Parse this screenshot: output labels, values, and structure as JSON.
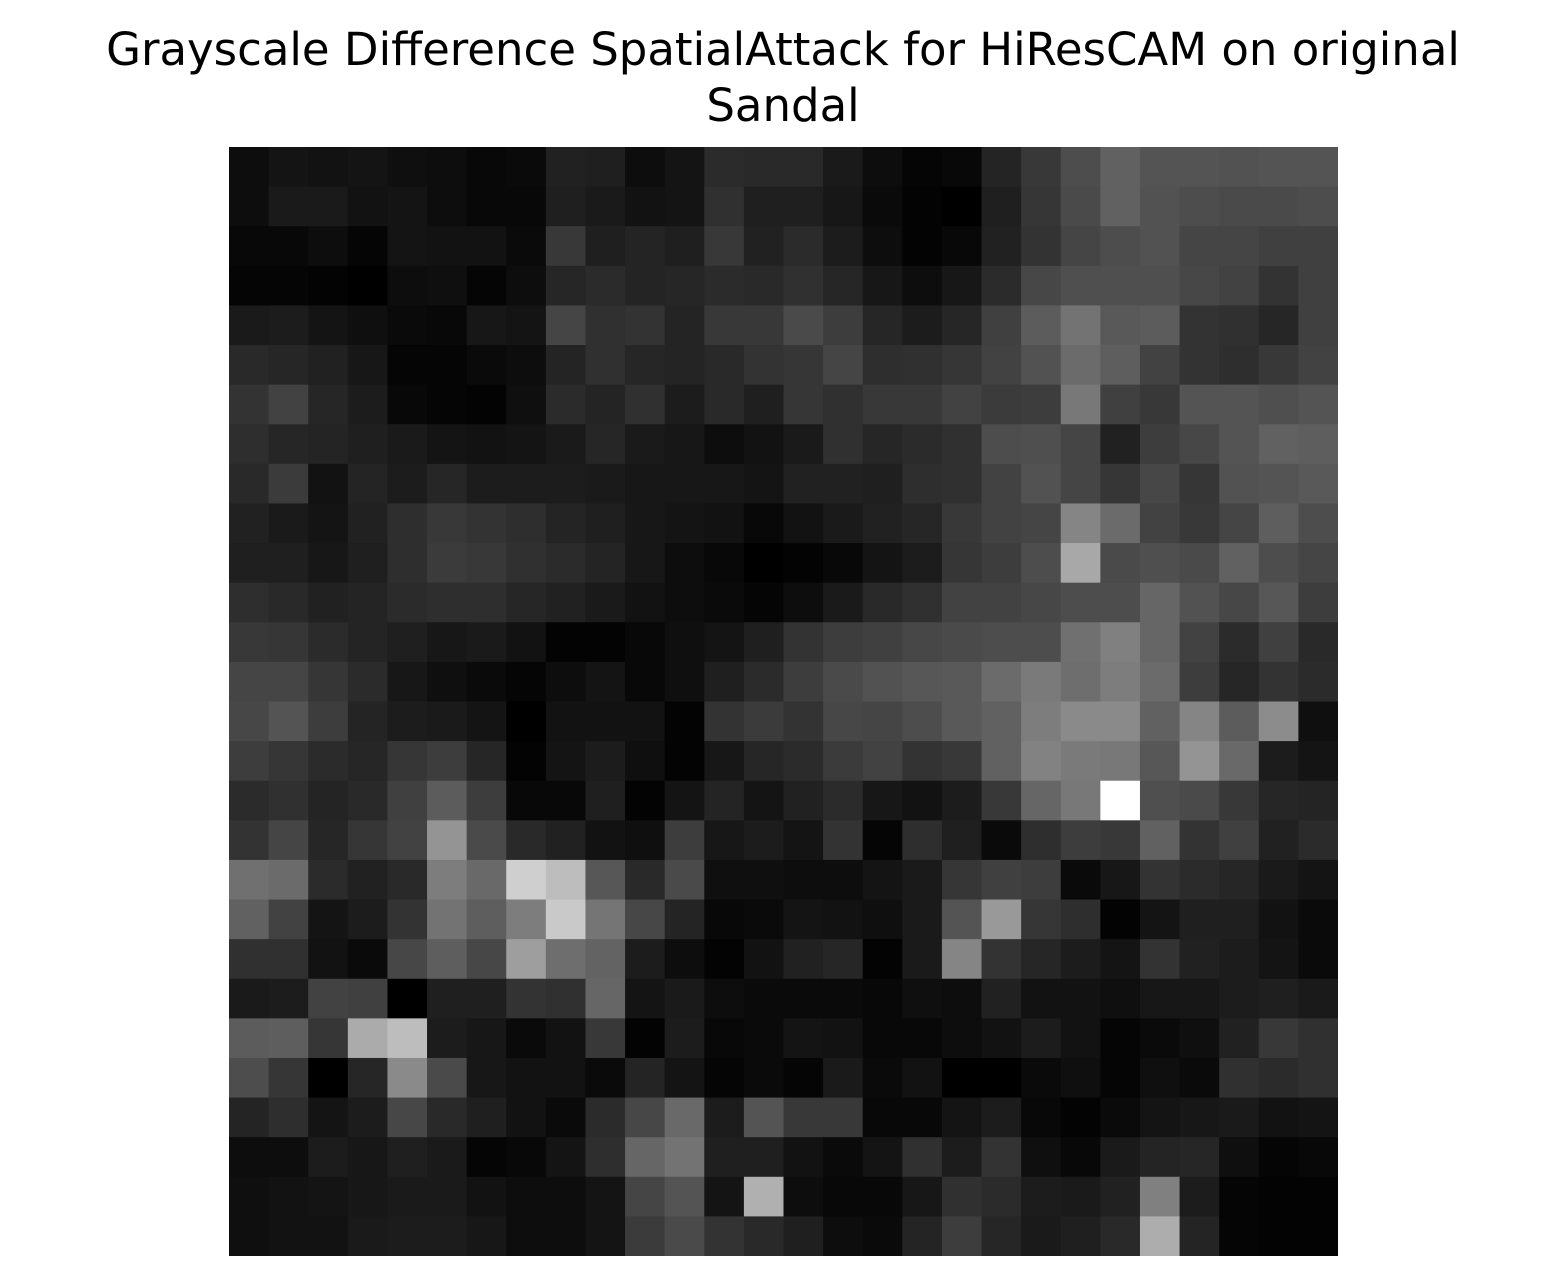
{
  "chart_data": {
    "type": "heatmap",
    "title_line1": "Grayscale Difference SpatialAttack for HiResCAM on original",
    "title_line2": "Sandal",
    "colormap": "gray",
    "axes": "off",
    "rows": 28,
    "cols": 28,
    "values": [
      [
        0.05,
        0.08,
        0.07,
        0.08,
        0.06,
        0.05,
        0.03,
        0.04,
        0.13,
        0.12,
        0.05,
        0.08,
        0.17,
        0.16,
        0.16,
        0.1,
        0.05,
        0.02,
        0.03,
        0.14,
        0.22,
        0.3,
        0.38,
        0.33,
        0.33,
        0.32,
        0.33,
        0.33
      ],
      [
        0.05,
        0.1,
        0.1,
        0.07,
        0.08,
        0.05,
        0.03,
        0.03,
        0.12,
        0.1,
        0.07,
        0.08,
        0.19,
        0.12,
        0.12,
        0.09,
        0.04,
        0.01,
        0.0,
        0.12,
        0.21,
        0.29,
        0.38,
        0.32,
        0.3,
        0.29,
        0.29,
        0.3
      ],
      [
        0.03,
        0.03,
        0.05,
        0.02,
        0.08,
        0.07,
        0.07,
        0.04,
        0.22,
        0.12,
        0.14,
        0.12,
        0.22,
        0.13,
        0.17,
        0.11,
        0.05,
        0.01,
        0.03,
        0.13,
        0.2,
        0.27,
        0.3,
        0.32,
        0.27,
        0.27,
        0.25,
        0.25
      ],
      [
        0.02,
        0.02,
        0.01,
        0.0,
        0.05,
        0.06,
        0.02,
        0.05,
        0.15,
        0.17,
        0.14,
        0.15,
        0.17,
        0.16,
        0.19,
        0.15,
        0.09,
        0.05,
        0.09,
        0.17,
        0.28,
        0.31,
        0.31,
        0.31,
        0.28,
        0.26,
        0.2,
        0.25
      ],
      [
        0.1,
        0.11,
        0.08,
        0.06,
        0.04,
        0.03,
        0.09,
        0.08,
        0.27,
        0.19,
        0.2,
        0.14,
        0.22,
        0.22,
        0.29,
        0.24,
        0.15,
        0.11,
        0.15,
        0.25,
        0.36,
        0.45,
        0.35,
        0.36,
        0.2,
        0.19,
        0.15,
        0.25
      ],
      [
        0.16,
        0.15,
        0.13,
        0.09,
        0.02,
        0.02,
        0.04,
        0.05,
        0.14,
        0.19,
        0.15,
        0.14,
        0.16,
        0.2,
        0.21,
        0.27,
        0.18,
        0.19,
        0.21,
        0.26,
        0.32,
        0.42,
        0.37,
        0.26,
        0.2,
        0.18,
        0.22,
        0.26
      ],
      [
        0.2,
        0.26,
        0.15,
        0.11,
        0.03,
        0.02,
        0.01,
        0.06,
        0.17,
        0.14,
        0.19,
        0.11,
        0.16,
        0.12,
        0.21,
        0.19,
        0.22,
        0.22,
        0.26,
        0.23,
        0.24,
        0.47,
        0.25,
        0.22,
        0.33,
        0.33,
        0.31,
        0.33
      ],
      [
        0.18,
        0.15,
        0.14,
        0.12,
        0.1,
        0.08,
        0.07,
        0.08,
        0.1,
        0.15,
        0.1,
        0.09,
        0.05,
        0.07,
        0.1,
        0.19,
        0.15,
        0.17,
        0.19,
        0.3,
        0.31,
        0.27,
        0.13,
        0.24,
        0.28,
        0.33,
        0.38,
        0.37
      ],
      [
        0.16,
        0.23,
        0.07,
        0.14,
        0.11,
        0.15,
        0.11,
        0.11,
        0.11,
        0.1,
        0.09,
        0.09,
        0.09,
        0.08,
        0.13,
        0.13,
        0.12,
        0.18,
        0.19,
        0.26,
        0.32,
        0.27,
        0.21,
        0.28,
        0.21,
        0.32,
        0.33,
        0.35
      ],
      [
        0.13,
        0.1,
        0.08,
        0.13,
        0.18,
        0.22,
        0.2,
        0.18,
        0.14,
        0.12,
        0.09,
        0.08,
        0.07,
        0.03,
        0.07,
        0.1,
        0.13,
        0.15,
        0.22,
        0.26,
        0.27,
        0.52,
        0.42,
        0.26,
        0.22,
        0.27,
        0.37,
        0.3
      ],
      [
        0.12,
        0.12,
        0.09,
        0.12,
        0.18,
        0.23,
        0.22,
        0.19,
        0.17,
        0.14,
        0.09,
        0.05,
        0.03,
        0.0,
        0.01,
        0.03,
        0.08,
        0.11,
        0.21,
        0.24,
        0.3,
        0.66,
        0.29,
        0.31,
        0.29,
        0.38,
        0.3,
        0.27
      ],
      [
        0.18,
        0.16,
        0.13,
        0.14,
        0.17,
        0.18,
        0.18,
        0.15,
        0.13,
        0.1,
        0.07,
        0.05,
        0.04,
        0.02,
        0.05,
        0.1,
        0.16,
        0.19,
        0.26,
        0.26,
        0.28,
        0.3,
        0.3,
        0.4,
        0.32,
        0.28,
        0.34,
        0.24
      ],
      [
        0.22,
        0.21,
        0.17,
        0.14,
        0.12,
        0.09,
        0.1,
        0.07,
        0.01,
        0.01,
        0.03,
        0.06,
        0.08,
        0.12,
        0.2,
        0.24,
        0.25,
        0.28,
        0.29,
        0.3,
        0.3,
        0.44,
        0.5,
        0.4,
        0.26,
        0.17,
        0.25,
        0.16
      ],
      [
        0.27,
        0.27,
        0.21,
        0.17,
        0.09,
        0.06,
        0.04,
        0.02,
        0.05,
        0.08,
        0.03,
        0.06,
        0.12,
        0.17,
        0.24,
        0.29,
        0.32,
        0.34,
        0.35,
        0.42,
        0.48,
        0.43,
        0.49,
        0.42,
        0.24,
        0.15,
        0.2,
        0.17
      ],
      [
        0.28,
        0.33,
        0.24,
        0.14,
        0.11,
        0.1,
        0.08,
        0.0,
        0.07,
        0.07,
        0.07,
        0.01,
        0.2,
        0.23,
        0.2,
        0.28,
        0.27,
        0.3,
        0.35,
        0.38,
        0.49,
        0.54,
        0.54,
        0.38,
        0.52,
        0.36,
        0.55,
        0.06
      ],
      [
        0.24,
        0.21,
        0.17,
        0.15,
        0.21,
        0.24,
        0.15,
        0.01,
        0.08,
        0.11,
        0.06,
        0.01,
        0.09,
        0.15,
        0.17,
        0.23,
        0.26,
        0.2,
        0.22,
        0.38,
        0.51,
        0.48,
        0.47,
        0.34,
        0.58,
        0.41,
        0.11,
        0.08
      ],
      [
        0.17,
        0.19,
        0.14,
        0.16,
        0.25,
        0.36,
        0.24,
        0.03,
        0.03,
        0.12,
        0.01,
        0.08,
        0.14,
        0.08,
        0.13,
        0.17,
        0.09,
        0.07,
        0.11,
        0.22,
        0.4,
        0.47,
        1.0,
        0.31,
        0.29,
        0.22,
        0.15,
        0.14
      ],
      [
        0.2,
        0.27,
        0.15,
        0.21,
        0.26,
        0.58,
        0.29,
        0.16,
        0.13,
        0.07,
        0.06,
        0.24,
        0.09,
        0.11,
        0.08,
        0.2,
        0.02,
        0.18,
        0.12,
        0.04,
        0.18,
        0.24,
        0.22,
        0.38,
        0.2,
        0.25,
        0.13,
        0.17
      ],
      [
        0.44,
        0.42,
        0.17,
        0.13,
        0.16,
        0.49,
        0.41,
        0.81,
        0.74,
        0.34,
        0.16,
        0.29,
        0.06,
        0.06,
        0.05,
        0.05,
        0.08,
        0.1,
        0.21,
        0.25,
        0.24,
        0.04,
        0.09,
        0.2,
        0.17,
        0.15,
        0.1,
        0.08
      ],
      [
        0.38,
        0.26,
        0.08,
        0.11,
        0.2,
        0.45,
        0.37,
        0.49,
        0.79,
        0.46,
        0.28,
        0.14,
        0.03,
        0.04,
        0.08,
        0.07,
        0.06,
        0.1,
        0.33,
        0.6,
        0.21,
        0.18,
        0.01,
        0.08,
        0.12,
        0.12,
        0.07,
        0.04
      ],
      [
        0.19,
        0.19,
        0.07,
        0.04,
        0.28,
        0.37,
        0.28,
        0.62,
        0.43,
        0.39,
        0.11,
        0.05,
        0.01,
        0.07,
        0.13,
        0.15,
        0.01,
        0.1,
        0.52,
        0.2,
        0.15,
        0.11,
        0.08,
        0.2,
        0.13,
        0.11,
        0.08,
        0.04
      ],
      [
        0.1,
        0.11,
        0.26,
        0.25,
        0.0,
        0.12,
        0.12,
        0.2,
        0.19,
        0.4,
        0.08,
        0.1,
        0.05,
        0.04,
        0.04,
        0.04,
        0.03,
        0.06,
        0.05,
        0.13,
        0.07,
        0.07,
        0.06,
        0.09,
        0.09,
        0.11,
        0.12,
        0.1
      ],
      [
        0.36,
        0.37,
        0.21,
        0.67,
        0.74,
        0.11,
        0.09,
        0.04,
        0.07,
        0.22,
        0.01,
        0.11,
        0.03,
        0.04,
        0.08,
        0.07,
        0.03,
        0.03,
        0.05,
        0.07,
        0.11,
        0.07,
        0.02,
        0.04,
        0.06,
        0.13,
        0.22,
        0.19
      ],
      [
        0.3,
        0.21,
        0.0,
        0.15,
        0.54,
        0.29,
        0.09,
        0.07,
        0.07,
        0.04,
        0.14,
        0.08,
        0.02,
        0.04,
        0.02,
        0.1,
        0.04,
        0.07,
        0.0,
        0.0,
        0.04,
        0.06,
        0.02,
        0.06,
        0.04,
        0.19,
        0.17,
        0.19
      ],
      [
        0.14,
        0.18,
        0.08,
        0.11,
        0.28,
        0.16,
        0.12,
        0.07,
        0.04,
        0.17,
        0.28,
        0.41,
        0.11,
        0.33,
        0.22,
        0.22,
        0.03,
        0.03,
        0.08,
        0.11,
        0.03,
        0.01,
        0.04,
        0.08,
        0.09,
        0.1,
        0.07,
        0.08
      ],
      [
        0.05,
        0.05,
        0.11,
        0.09,
        0.12,
        0.1,
        0.02,
        0.03,
        0.08,
        0.18,
        0.4,
        0.45,
        0.12,
        0.12,
        0.07,
        0.04,
        0.08,
        0.19,
        0.11,
        0.2,
        0.06,
        0.03,
        0.1,
        0.14,
        0.15,
        0.06,
        0.02,
        0.03
      ],
      [
        0.06,
        0.07,
        0.08,
        0.09,
        0.1,
        0.1,
        0.07,
        0.05,
        0.05,
        0.08,
        0.27,
        0.33,
        0.08,
        0.69,
        0.05,
        0.03,
        0.03,
        0.09,
        0.19,
        0.17,
        0.11,
        0.1,
        0.13,
        0.5,
        0.11,
        0.02,
        0.01,
        0.01
      ],
      [
        0.06,
        0.07,
        0.07,
        0.1,
        0.11,
        0.11,
        0.09,
        0.05,
        0.05,
        0.08,
        0.23,
        0.29,
        0.2,
        0.16,
        0.12,
        0.05,
        0.04,
        0.14,
        0.24,
        0.15,
        0.1,
        0.12,
        0.16,
        0.68,
        0.14,
        0.02,
        0.01,
        0.01
      ]
    ]
  }
}
